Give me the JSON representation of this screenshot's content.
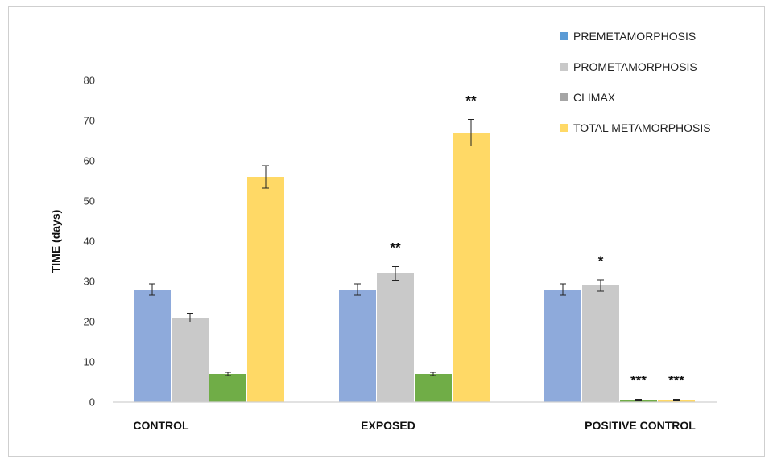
{
  "chart_data": {
    "type": "bar",
    "title": "",
    "ylabel": "TIME  (days)",
    "xlabel": "",
    "ylim": [
      0,
      80
    ],
    "yticks": [
      0,
      10,
      20,
      30,
      40,
      50,
      60,
      70,
      80
    ],
    "grid": false,
    "legend_position": "top-right",
    "categories": [
      "CONTROL",
      "EXPOSED",
      "POSITIVE  CONTROL"
    ],
    "series": [
      {
        "name": "PREMETAMORPHOSIS",
        "legend_color": "#5b9bd5",
        "color": "#8eaadb",
        "values": [
          28,
          28,
          28
        ],
        "errors": [
          1.4,
          1.4,
          1.4
        ],
        "annotations": [
          "",
          "",
          ""
        ]
      },
      {
        "name": "PROMETAMORPHOSIS",
        "legend_color": "#c9c9c9",
        "color": "#c9c9c9",
        "values": [
          21,
          32,
          29
        ],
        "errors": [
          1.1,
          1.7,
          1.4
        ],
        "annotations": [
          "",
          "**",
          "*"
        ]
      },
      {
        "name": "CLIMAX",
        "legend_color": "#a5a5a5",
        "color": "#70ad47",
        "values": [
          7,
          7,
          0.5
        ],
        "errors": [
          0.4,
          0.4,
          0.2
        ],
        "annotations": [
          "",
          "",
          "***"
        ]
      },
      {
        "name": "TOTAL METAMORPHOSIS",
        "legend_color": "#ffd966",
        "color": "#ffd966",
        "values": [
          56,
          67,
          0.5
        ],
        "errors": [
          2.8,
          3.3,
          0.2
        ],
        "annotations": [
          "",
          "**",
          "***"
        ]
      }
    ]
  }
}
